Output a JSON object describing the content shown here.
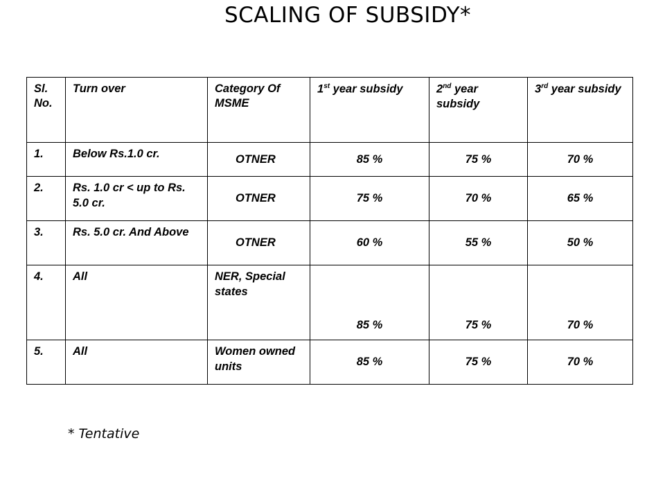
{
  "title": "SCALING OF SUBSIDY*",
  "table": {
    "headers": {
      "sl_no": "Sl. No.",
      "turnover": "Turn over",
      "category": "Category Of MSME",
      "y1_num": "1",
      "y1_sup": "st",
      "y1_rest": " year subsidy",
      "y2_num": "2",
      "y2_sup": "nd",
      "y2_rest": " year subsidy",
      "y3_num": "3",
      "y3_sup": "rd",
      "y3_rest": " year subsidy"
    },
    "rows": [
      {
        "sl": "1.",
        "turnover": "Below Rs.1.0 cr.",
        "category": "OTNER",
        "y1": "85 %",
        "y2": "75 %",
        "y3": "70 %"
      },
      {
        "sl": "2.",
        "turnover": "Rs. 1.0 cr < up to Rs. 5.0 cr.",
        "category": "OTNER",
        "y1": "75 %",
        "y2": "70 %",
        "y3": "65 %"
      },
      {
        "sl": "3.",
        "turnover": "Rs. 5.0 cr. And Above",
        "category": "OTNER",
        "y1": "60 %",
        "y2": "55 %",
        "y3": "50 %"
      },
      {
        "sl": "4.",
        "turnover": "All",
        "category": "NER, Special states",
        "y1": "85 %",
        "y2": "75 %",
        "y3": "70 %"
      },
      {
        "sl": "5.",
        "turnover": "All",
        "category": "Women owned units",
        "y1": "85 %",
        "y2": "75 %",
        "y3": "70 %"
      }
    ]
  },
  "footnote": "* Tentative"
}
